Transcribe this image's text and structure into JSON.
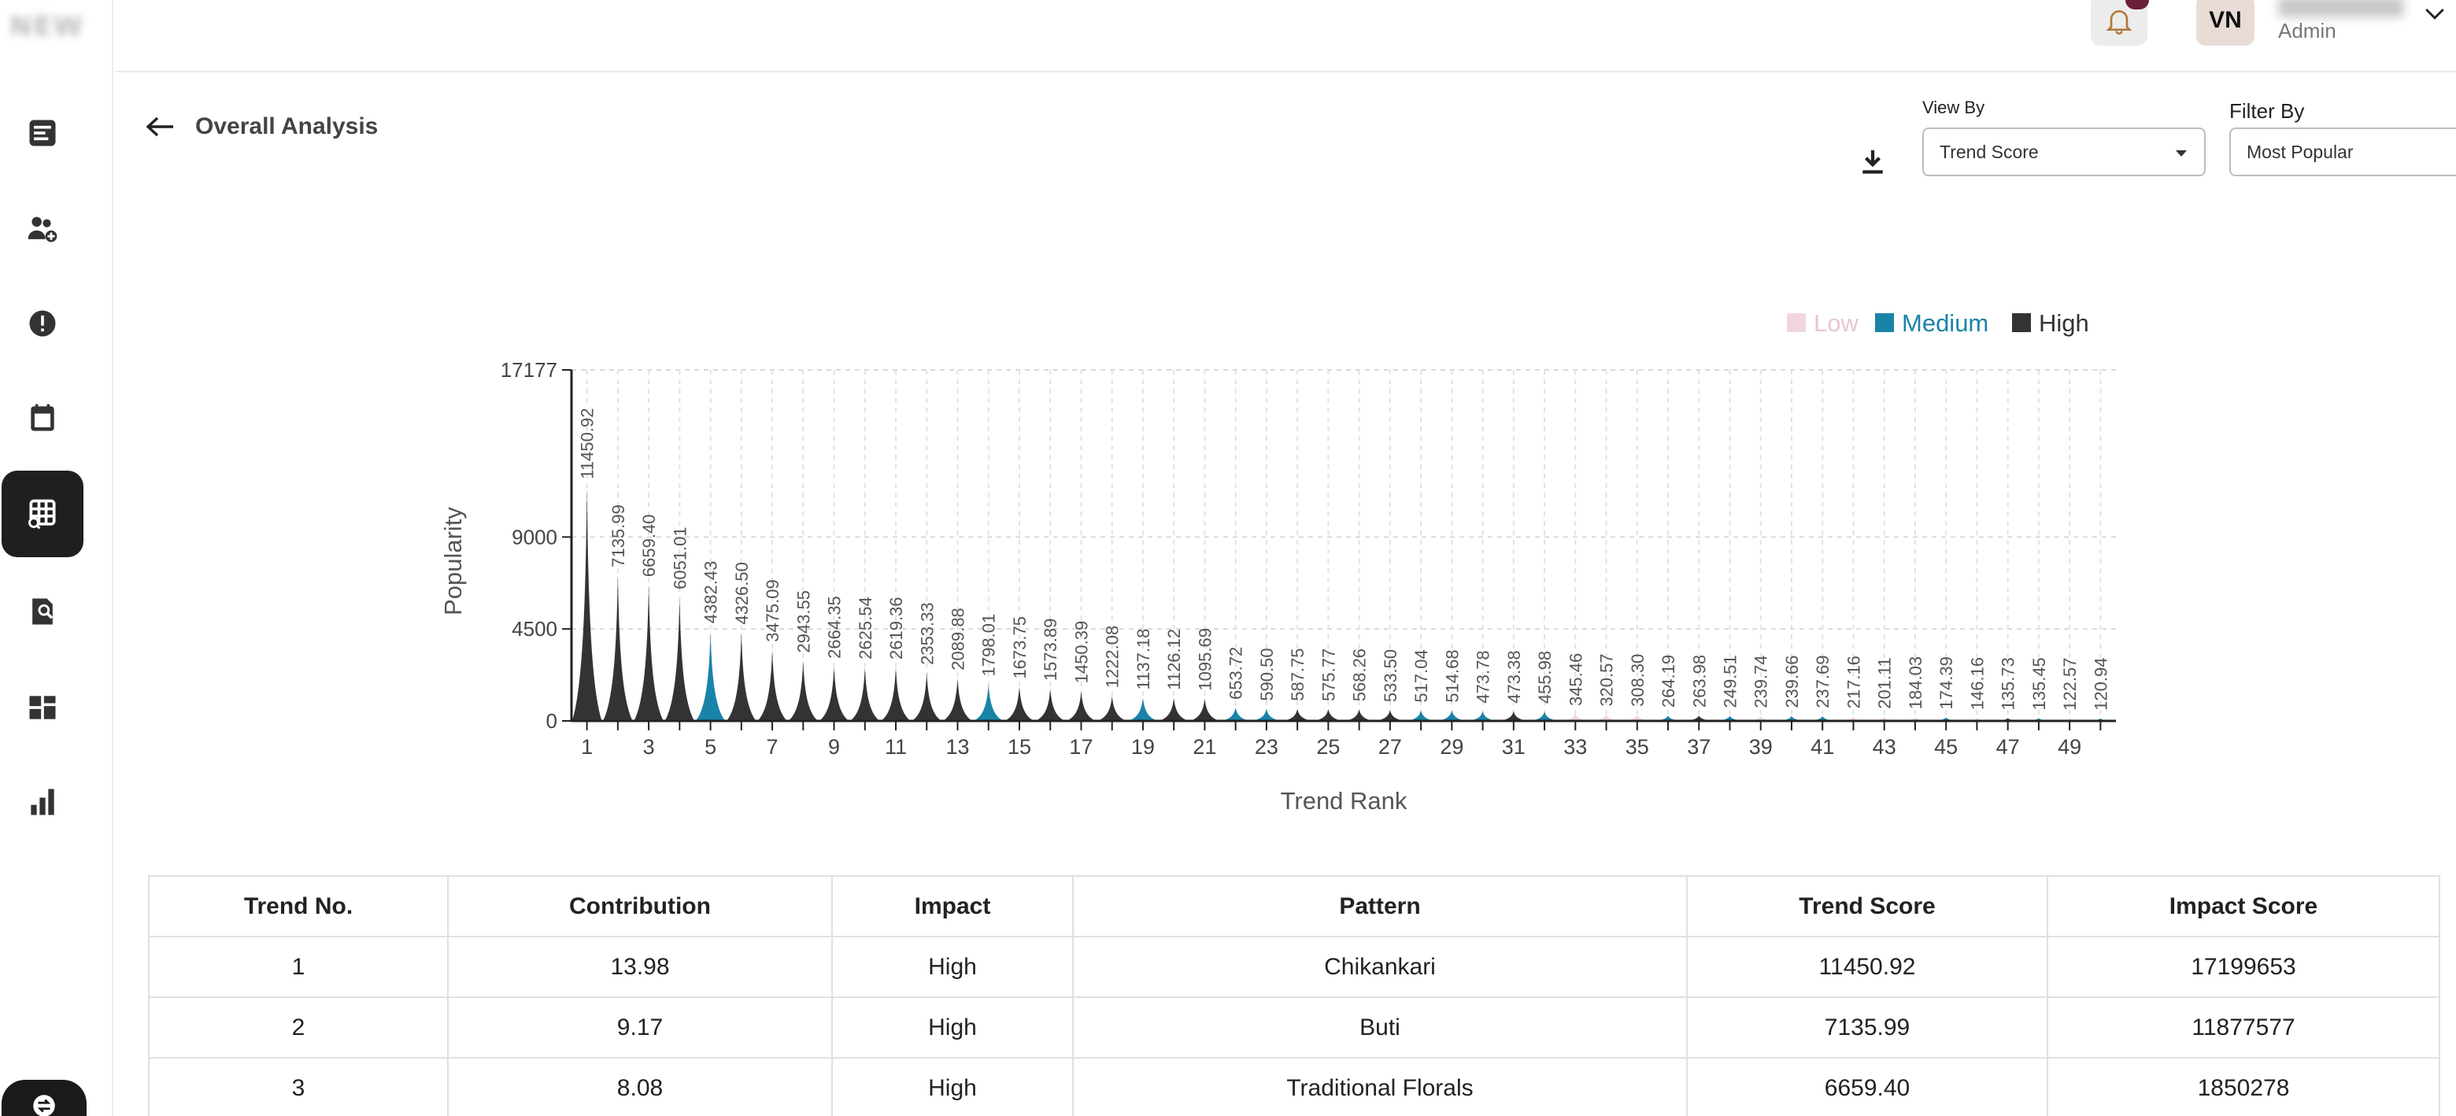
{
  "app": {
    "logo_text": "NEW"
  },
  "header": {
    "avatar_initials": "VN",
    "user_name": "Vishal N",
    "user_role": "Admin"
  },
  "sidebar": {
    "items": [
      {
        "icon": "document-list-icon"
      },
      {
        "icon": "user-add-icon"
      },
      {
        "icon": "alert-icon"
      },
      {
        "icon": "calendar-icon"
      },
      {
        "icon": "grid-search-icon",
        "active": true
      },
      {
        "icon": "file-search-icon"
      },
      {
        "icon": "dashboard-icon"
      },
      {
        "icon": "bar-chart-icon"
      }
    ]
  },
  "page": {
    "title": "Overall Analysis",
    "view_by_label": "View By",
    "view_by_value": "Trend Score",
    "filter_by_label": "Filter By",
    "filter_by_value": "Most Popular"
  },
  "colors": {
    "Low": "#f2d6df",
    "Medium": "#1a83a8",
    "High": "#333333"
  },
  "chart_data": {
    "type": "bar",
    "xlabel": "Trend Rank",
    "ylabel": "Popularity",
    "y_ticks": [
      0,
      4500,
      9000,
      17177
    ],
    "ylim": [
      0,
      17177
    ],
    "x_ticks": [
      1,
      3,
      5,
      7,
      9,
      11,
      13,
      15,
      17,
      19,
      21,
      23,
      25,
      27,
      29,
      31,
      33,
      35,
      37,
      39,
      41,
      43,
      45,
      47,
      49
    ],
    "legend": [
      "Low",
      "Medium",
      "High"
    ],
    "legend_position": "top-right",
    "grid": true,
    "labels": [
      "11450.92",
      "7135.99",
      "6659.40",
      "6051.01",
      "4382.43",
      "4326.50",
      "3475.09",
      "2943.55",
      "2664.35",
      "2625.54",
      "2619.36",
      "2353.33",
      "2089.88",
      "1798.01",
      "1673.75",
      "1573.89",
      "1450.39",
      "1222.08",
      "1137.18",
      "1126.12",
      "1095.69",
      "653.72",
      "590.50",
      "587.75",
      "575.77",
      "568.26",
      "533.50",
      "517.04",
      "514.68",
      "473.78",
      "473.38",
      "455.98",
      "345.46",
      "320.57",
      "308.30",
      "264.19",
      "263.98",
      "249.51",
      "239.74",
      "239.66",
      "237.69",
      "217.16",
      "201.11",
      "184.03",
      "174.39",
      "146.16",
      "135.73",
      "135.45",
      "122.57",
      "120.94"
    ],
    "values": [
      11450.92,
      7135.99,
      6659.4,
      6051.01,
      4382.43,
      4326.5,
      3475.09,
      2943.55,
      2664.35,
      2625.54,
      2619.36,
      2353.33,
      2089.88,
      1798.01,
      1673.75,
      1573.89,
      1450.39,
      1222.08,
      1137.18,
      1126.12,
      1095.69,
      653.72,
      590.5,
      587.75,
      575.77,
      568.26,
      533.5,
      517.04,
      514.68,
      473.78,
      473.38,
      455.98,
      345.46,
      320.57,
      308.3,
      264.19,
      263.98,
      249.51,
      239.74,
      239.66,
      237.69,
      217.16,
      201.11,
      184.03,
      174.39,
      146.16,
      135.73,
      135.45,
      122.57,
      120.94
    ],
    "impact": [
      "High",
      "High",
      "High",
      "High",
      "Medium",
      "High",
      "High",
      "High",
      "High",
      "High",
      "High",
      "High",
      "High",
      "Medium",
      "High",
      "High",
      "High",
      "High",
      "Medium",
      "High",
      "High",
      "Medium",
      "Medium",
      "High",
      "High",
      "High",
      "High",
      "Medium",
      "Medium",
      "Medium",
      "High",
      "Medium",
      "Low",
      "Low",
      "Low",
      "Medium",
      "High",
      "Medium",
      "Low",
      "Medium",
      "Medium",
      "Low",
      "Low",
      "Low",
      "Medium",
      "Low",
      "High",
      "Medium",
      "Low",
      "Medium"
    ]
  },
  "table": {
    "headers": [
      "Trend No.",
      "Contribution",
      "Impact",
      "Pattern",
      "Trend Score",
      "Impact Score"
    ],
    "rows": [
      [
        "1",
        "13.98",
        "High",
        "Chikankari",
        "11450.92",
        "17199653"
      ],
      [
        "2",
        "9.17",
        "High",
        "Buti",
        "7135.99",
        "11877577"
      ],
      [
        "3",
        "8.08",
        "High",
        "Traditional Florals",
        "6659.40",
        "1850278"
      ]
    ]
  }
}
